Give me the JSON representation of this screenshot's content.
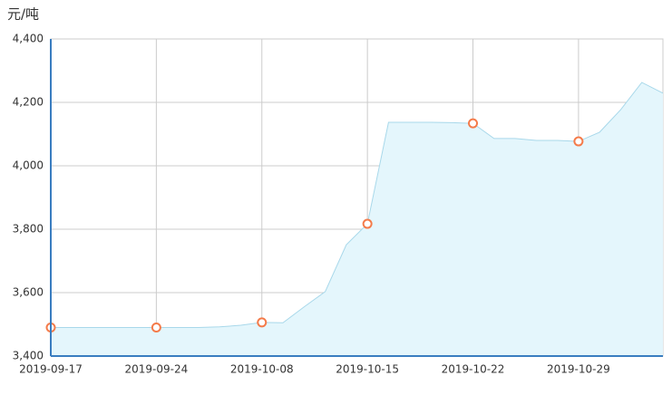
{
  "chart_data": {
    "type": "area",
    "y_label": "元/吨",
    "categories": [
      "2019-09-17",
      null,
      null,
      null,
      null,
      "2019-09-24",
      null,
      null,
      null,
      null,
      "2019-10-08",
      null,
      null,
      null,
      null,
      "2019-10-15",
      null,
      null,
      null,
      null,
      "2019-10-22",
      null,
      null,
      null,
      null,
      "2019-10-29",
      null,
      null,
      null,
      null
    ],
    "series": [
      {
        "color": "#a8d8ea",
        "values": [
          3490,
          3490,
          3490,
          3490,
          3490,
          3490,
          3490,
          3490,
          3492,
          3497,
          3506,
          3505,
          3555,
          3603,
          3751,
          3817,
          4137,
          4137,
          4137,
          4136,
          4134,
          4086,
          4086,
          4080,
          4080,
          4077,
          4106,
          4177,
          4263,
          4229
        ]
      }
    ],
    "ylim": [
      3400,
      4400
    ],
    "yticks": [
      {
        "value": 3400,
        "label": "3,400"
      },
      {
        "value": 3600,
        "label": "3,600"
      },
      {
        "value": 3800,
        "label": "3,800"
      },
      {
        "value": 4000,
        "label": "4,000"
      },
      {
        "value": 4200,
        "label": "4,200"
      },
      {
        "value": 4400,
        "label": "4,400"
      }
    ],
    "grid": true,
    "marker_color": "#f47b4a",
    "fill_color": "#e4f6fc"
  }
}
